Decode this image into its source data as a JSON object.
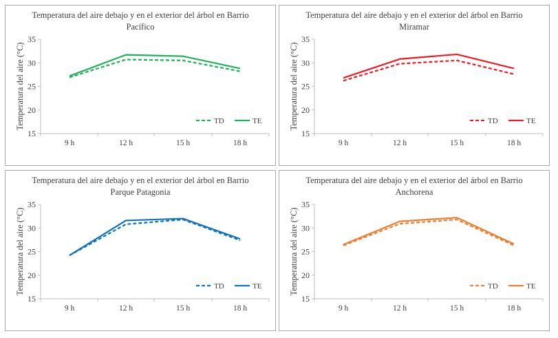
{
  "chart_data": [
    {
      "type": "line",
      "title": [
        "Temperatura del aire debajo y en el exterior del árbol en Barrio",
        "Pacífico"
      ],
      "xlabel": "",
      "ylabel": "Temperatura del aire (°C)",
      "categories": [
        "9 h",
        "12 h",
        "15 h",
        "18 h"
      ],
      "ylim": [
        15,
        35
      ],
      "yticks": [
        15,
        20,
        25,
        30,
        35
      ],
      "grid": false,
      "legend": "bottom-right",
      "color": "#1fb25a",
      "series": [
        {
          "name": "TD",
          "style": "dashed",
          "values": [
            26.9,
            30.7,
            30.5,
            28.2
          ]
        },
        {
          "name": "TE",
          "style": "solid",
          "values": [
            27.2,
            31.7,
            31.4,
            28.8
          ]
        }
      ]
    },
    {
      "type": "line",
      "title": [
        "Temperatura del aire debajo y en el exterior del árbol en Barrio",
        "Miramar"
      ],
      "xlabel": "",
      "ylabel": "Temperatura del aire (°C)",
      "categories": [
        "9 h",
        "12 h",
        "15 h",
        "18 h"
      ],
      "ylim": [
        15,
        35
      ],
      "yticks": [
        15,
        20,
        25,
        30,
        35
      ],
      "grid": false,
      "legend": "bottom-right",
      "color": "#ee1c25",
      "series": [
        {
          "name": "TD",
          "style": "dashed",
          "values": [
            26.2,
            29.8,
            30.5,
            27.6
          ]
        },
        {
          "name": "TE",
          "style": "solid",
          "values": [
            26.8,
            30.8,
            31.8,
            28.8
          ]
        }
      ]
    },
    {
      "type": "line",
      "title": [
        "Temperatura del aire debajo y en el exterior del árbol en Barrio",
        "Parque Patagonia"
      ],
      "xlabel": "",
      "ylabel": "Temperatura del aire (°C)",
      "categories": [
        "9 h",
        "12 h",
        "15 h",
        "18 h"
      ],
      "ylim": [
        15,
        35
      ],
      "yticks": [
        15,
        20,
        25,
        30,
        35
      ],
      "grid": false,
      "legend": "bottom-right",
      "color": "#0e72bd",
      "series": [
        {
          "name": "TD",
          "style": "dashed",
          "values": [
            24.2,
            30.8,
            31.8,
            27.4
          ]
        },
        {
          "name": "TE",
          "style": "solid",
          "values": [
            24.2,
            31.6,
            32.0,
            27.7
          ]
        }
      ]
    },
    {
      "type": "line",
      "title": [
        "Temperatura del aire debajo y en el exterior del árbol en Barrio",
        "Anchorena"
      ],
      "xlabel": "",
      "ylabel": "Temperatura del aire (°C)",
      "categories": [
        "9 h",
        "12 h",
        "15 h",
        "18 h"
      ],
      "ylim": [
        15,
        35
      ],
      "yticks": [
        15,
        20,
        25,
        30,
        35
      ],
      "grid": false,
      "legend": "bottom-right",
      "color": "#ed7d31",
      "series": [
        {
          "name": "TD",
          "style": "dashed",
          "values": [
            26.3,
            30.9,
            31.8,
            26.3
          ]
        },
        {
          "name": "TE",
          "style": "solid",
          "values": [
            26.5,
            31.4,
            32.2,
            26.6
          ]
        }
      ]
    }
  ]
}
